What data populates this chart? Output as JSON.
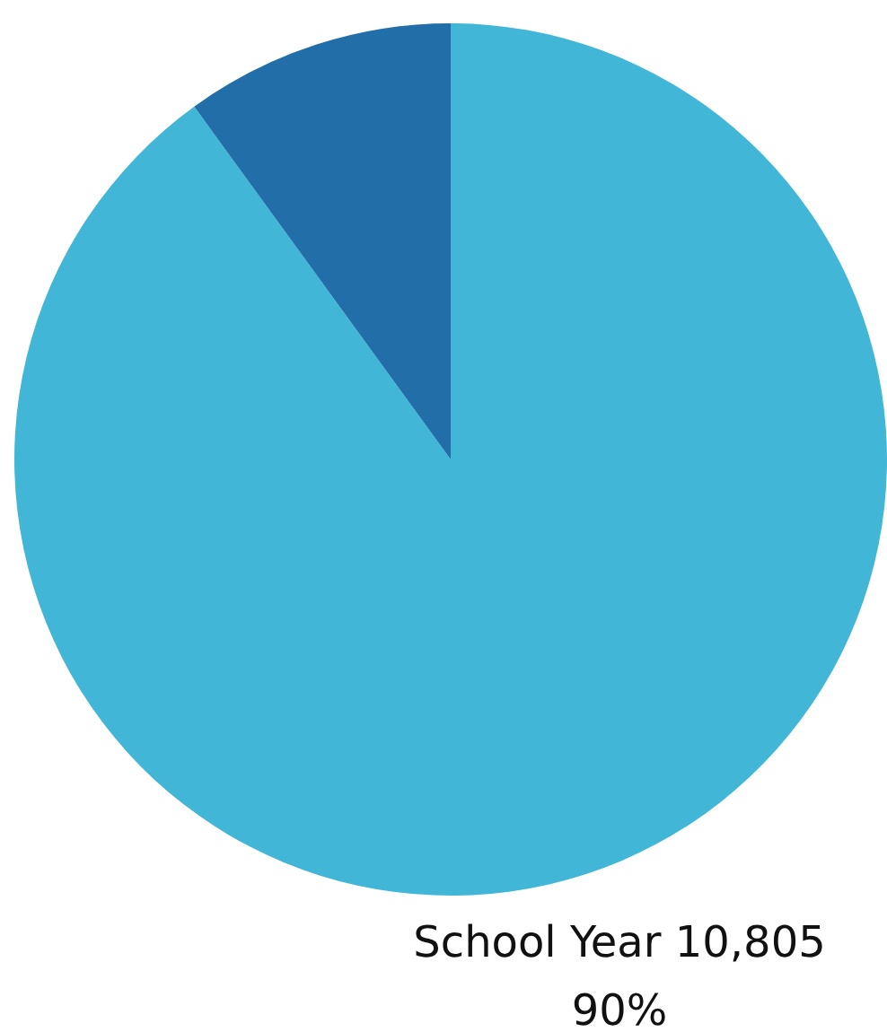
{
  "chart_data": {
    "type": "pie",
    "categories": [
      "School Year",
      null
    ],
    "values": [
      90,
      10
    ],
    "colors": [
      "#41b6d6",
      "#226ea8"
    ],
    "value_labels": [
      "10,805\n90%",
      null
    ],
    "legend": false
  }
}
